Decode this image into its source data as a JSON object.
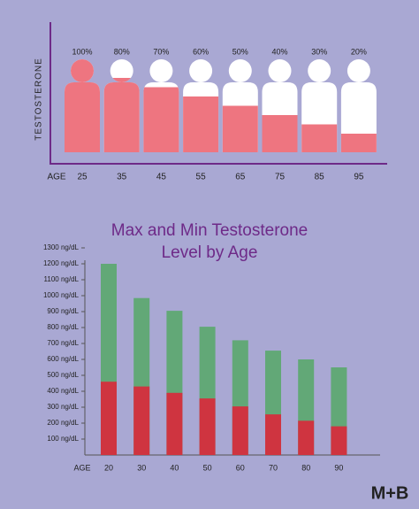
{
  "brand": "M+B",
  "chart_data": [
    {
      "type": "pictogram",
      "y_label": "TESTOSTERONE",
      "x_label": "AGE",
      "color": "#ee7580",
      "categories": [
        "25",
        "35",
        "45",
        "55",
        "65",
        "75",
        "85",
        "95"
      ],
      "values": [
        100,
        80,
        70,
        60,
        50,
        40,
        30,
        20
      ],
      "value_labels": [
        "100%",
        "80%",
        "70%",
        "60%",
        "50%",
        "40%",
        "30%",
        "20%"
      ],
      "ylim": [
        0,
        100
      ]
    },
    {
      "type": "bar",
      "title": "Max and Min Testosterone Level by Age",
      "x_label": "AGE",
      "categories": [
        "20",
        "30",
        "40",
        "50",
        "60",
        "70",
        "80",
        "90"
      ],
      "series": [
        {
          "color": "#62a877",
          "values": [
            1200,
            985,
            905,
            805,
            720,
            655,
            600,
            550
          ]
        },
        {
          "color": "#cf3440",
          "values": [
            460,
            430,
            390,
            355,
            305,
            255,
            215,
            180
          ]
        }
      ],
      "ylim": [
        0,
        1300
      ],
      "yticks": [
        {
          "value": 100,
          "label": "100 ng/dL"
        },
        {
          "value": 200,
          "label": "200 ng/dL"
        },
        {
          "value": 300,
          "label": "300 ng/dL"
        },
        {
          "value": 400,
          "label": "400 ng/dL"
        },
        {
          "value": 500,
          "label": "500 ng/dL"
        },
        {
          "value": 600,
          "label": "600 ng/dL"
        },
        {
          "value": 700,
          "label": "700 ng/dL"
        },
        {
          "value": 800,
          "label": "800 ng/dL"
        },
        {
          "value": 900,
          "label": "900 ng/dL"
        },
        {
          "value": 1000,
          "label": "1000 ng/dL"
        },
        {
          "value": 1100,
          "label": "1100 ng/dL"
        },
        {
          "value": 1200,
          "label": "1200 ng/dL"
        },
        {
          "value": 1300,
          "label": "1300 ng/dL"
        }
      ]
    }
  ]
}
